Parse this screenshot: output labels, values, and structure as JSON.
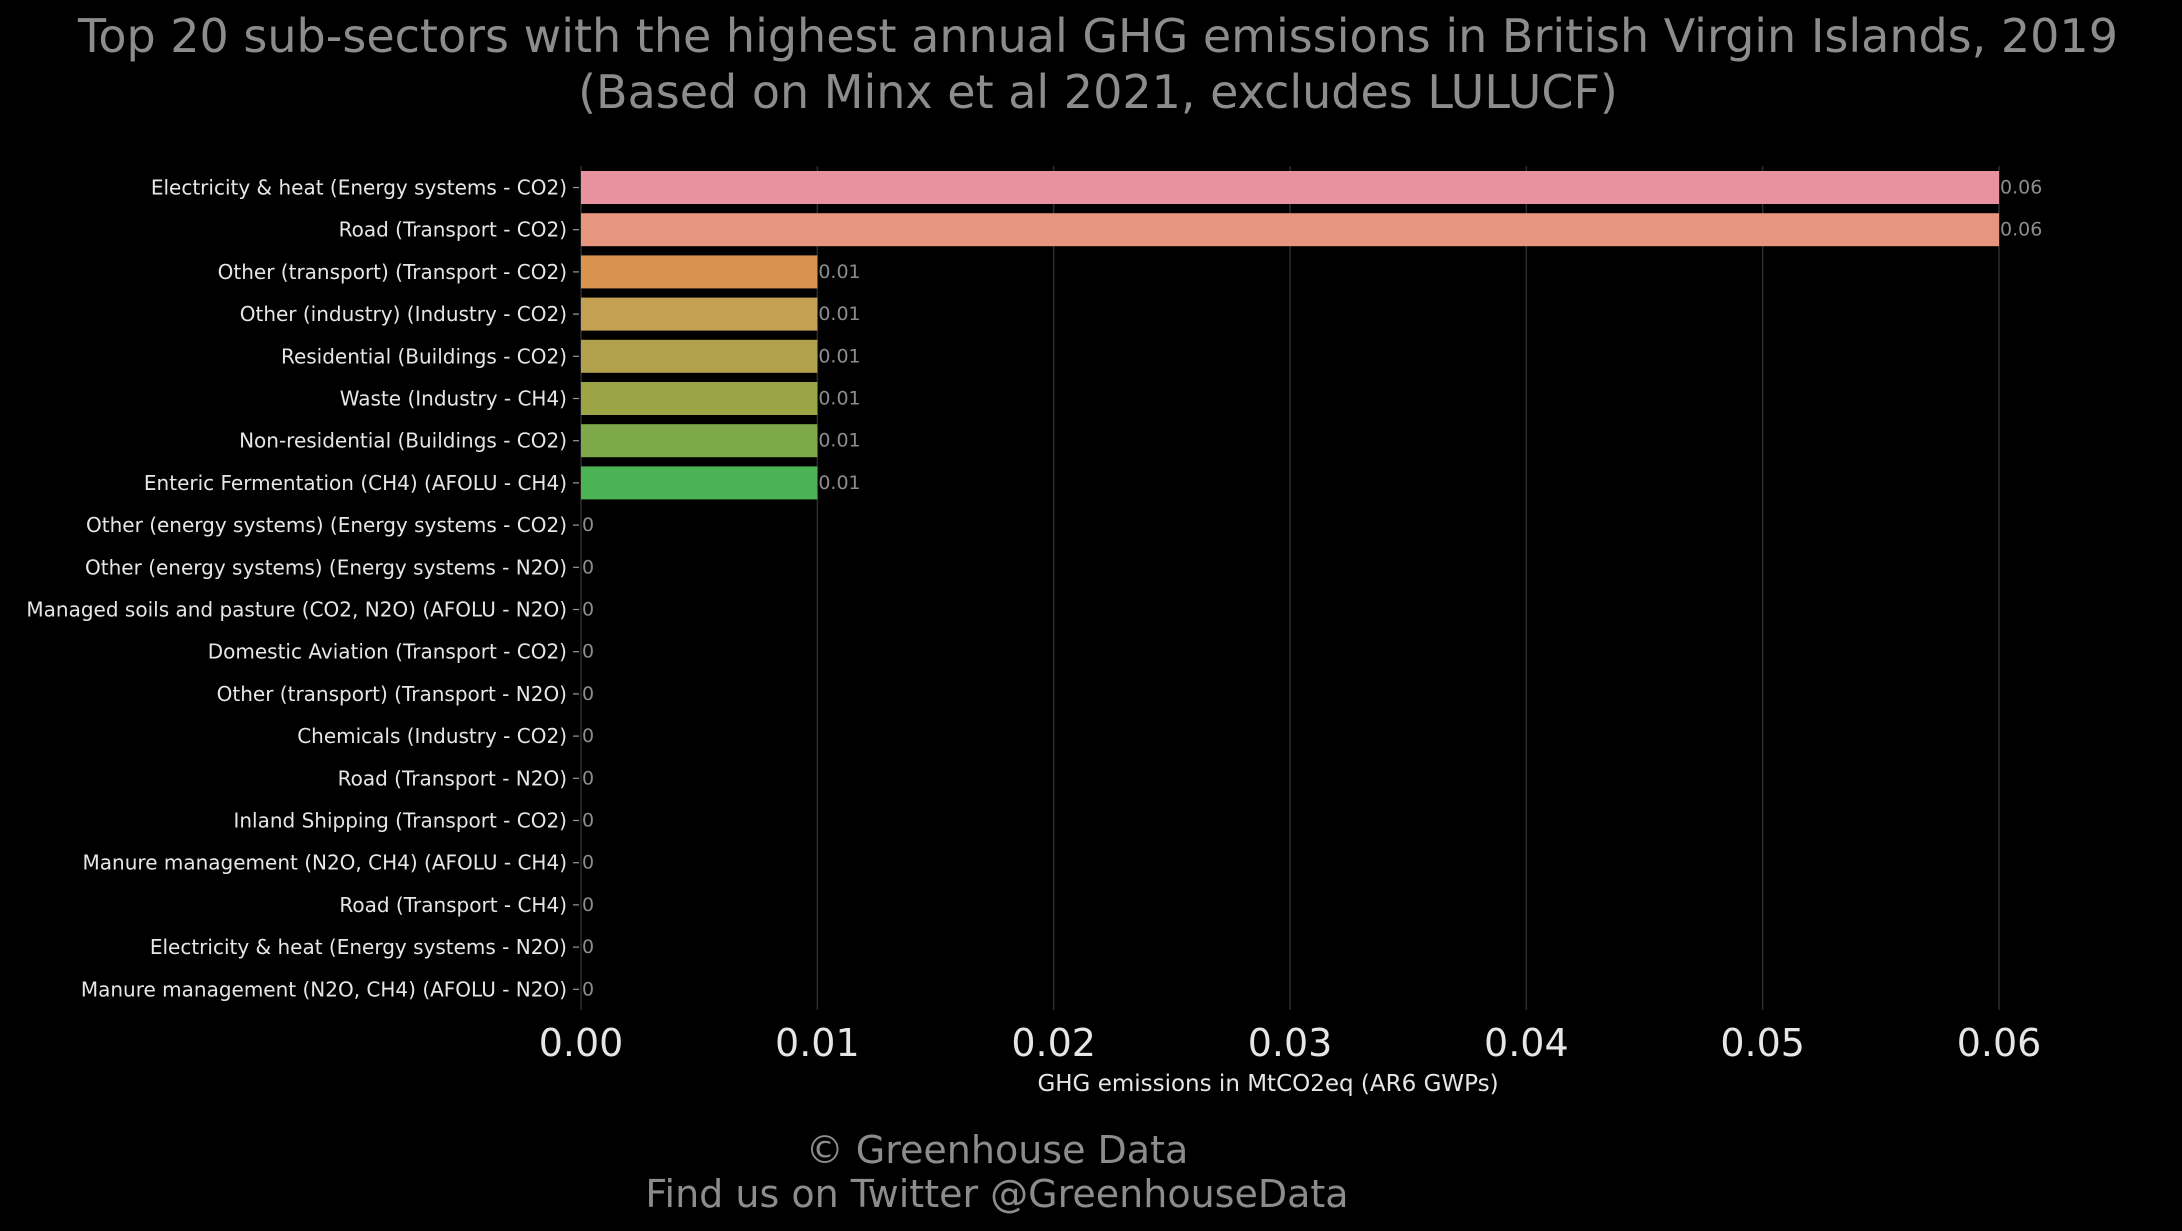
{
  "chart_data": {
    "type": "bar",
    "orientation": "horizontal",
    "title": "Top 20 sub-sectors with the highest annual GHG emissions in British Virgin Islands, 2019",
    "subtitle": "(Based on Minx et al 2021, excludes LULUCF)",
    "xlabel": "GHG emissions in MtCO2eq (AR6 GWPs)",
    "ylabel": "",
    "xlim": [
      0,
      0.06
    ],
    "xticks": [
      "0.00",
      "0.01",
      "0.02",
      "0.03",
      "0.04",
      "0.05",
      "0.06"
    ],
    "grid": true,
    "categories": [
      "Electricity & heat (Energy systems - CO2)",
      "Road (Transport - CO2)",
      "Other (transport) (Transport - CO2)",
      "Other (industry) (Industry - CO2)",
      "Residential (Buildings - CO2)",
      "Waste (Industry - CH4)",
      "Non-residential (Buildings - CO2)",
      "Enteric Fermentation (CH4) (AFOLU - CH4)",
      "Other (energy systems) (Energy systems - CO2)",
      "Other (energy systems) (Energy systems - N2O)",
      "Managed soils and pasture (CO2, N2O) (AFOLU - N2O)",
      "Domestic Aviation (Transport - CO2)",
      "Other (transport) (Transport - N2O)",
      "Chemicals (Industry - CO2)",
      "Road (Transport - N2O)",
      "Inland Shipping (Transport - CO2)",
      "Manure management (N2O, CH4) (AFOLU - CH4)",
      "Road (Transport - CH4)",
      "Electricity & heat (Energy systems - N2O)",
      "Manure management (N2O, CH4) (AFOLU - N2O)"
    ],
    "values": [
      0.06,
      0.06,
      0.01,
      0.01,
      0.01,
      0.01,
      0.01,
      0.01,
      0,
      0,
      0,
      0,
      0,
      0,
      0,
      0,
      0,
      0,
      0,
      0
    ],
    "value_labels": [
      "0.06",
      "0.06",
      "0.01",
      "0.01",
      "0.01",
      "0.01",
      "0.01",
      "0.01",
      "0",
      "0",
      "0",
      "0",
      "0",
      "0",
      "0",
      "0",
      "0",
      "0",
      "0",
      "0"
    ],
    "colors": [
      "#e8919f",
      "#e6957f",
      "#d8934f",
      "#c4a052",
      "#b2a14c",
      "#9da446",
      "#7ea94a",
      "#4cb354"
    ]
  },
  "credits": {
    "line1": "© Greenhouse Data",
    "line2": "Find us on Twitter @GreenhouseData"
  }
}
